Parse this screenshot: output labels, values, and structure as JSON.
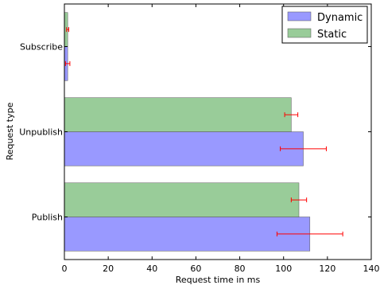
{
  "chart_data": {
    "type": "bar",
    "orientation": "horizontal",
    "categories": [
      "Publish",
      "Unpublish",
      "Subscribe"
    ],
    "series": [
      {
        "name": "Dynamic",
        "color": "#9999ff",
        "values": [
          112,
          109,
          1.5
        ],
        "errors": [
          15,
          10.5,
          1
        ]
      },
      {
        "name": "Static",
        "color": "#99cc99",
        "values": [
          107,
          103.5,
          1.5
        ],
        "errors": [
          3.5,
          3,
          0.5
        ]
      }
    ],
    "error_color": "#ff0000",
    "xlabel": "Request time in ms",
    "ylabel": "Request type",
    "xlim": [
      0,
      140
    ],
    "xticks": [
      "0",
      "20",
      "40",
      "60",
      "80",
      "100",
      "120",
      "140"
    ],
    "grid": false,
    "legend_position": "top-right"
  }
}
